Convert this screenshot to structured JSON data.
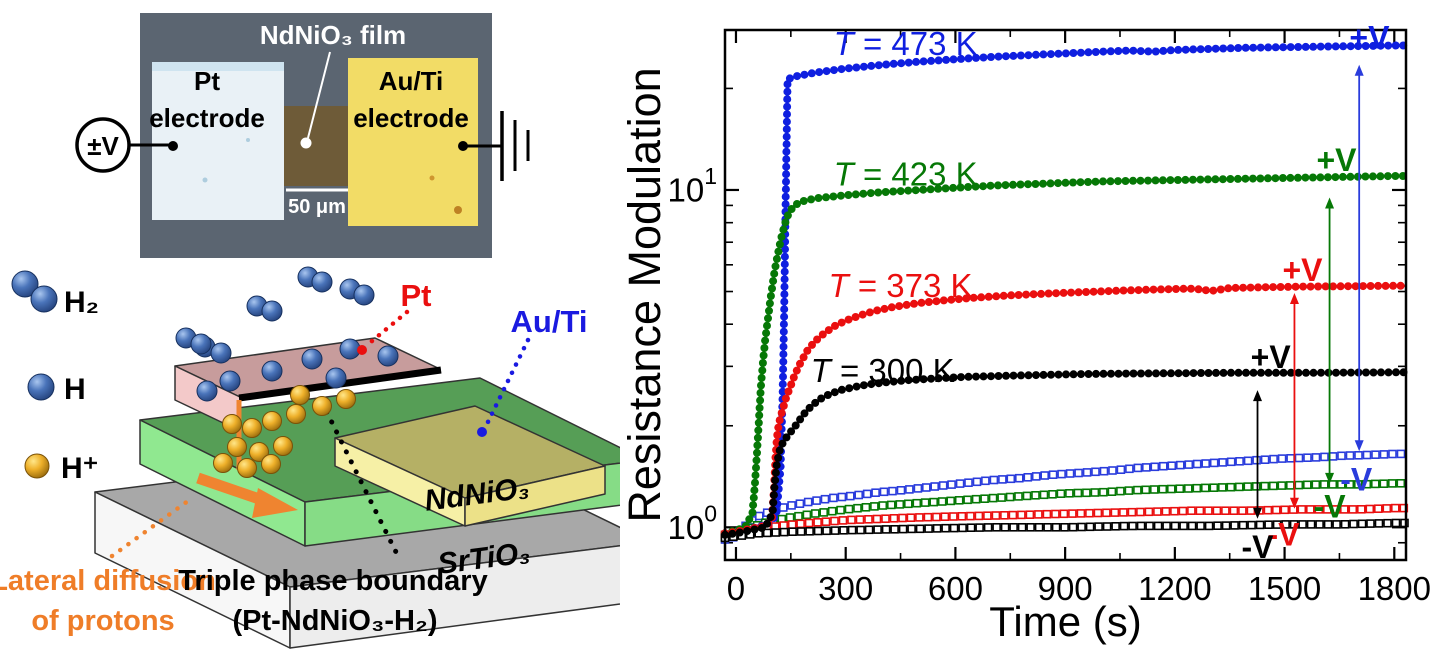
{
  "micrograph": {
    "film_label": "NdNiO₃ film",
    "pt_electrode": [
      "Pt",
      "electrode"
    ],
    "auti_electrode": [
      "Au/Ti",
      "electrode"
    ],
    "scale_bar_label": "50 μm",
    "voltage_source_label": "±V"
  },
  "legend": {
    "items": [
      {
        "icon": "h2-molecule",
        "label": "H₂"
      },
      {
        "icon": "h-atom",
        "label": "H"
      },
      {
        "icon": "proton",
        "label": "H⁺"
      }
    ]
  },
  "schematic": {
    "pt_label": "Pt",
    "auti_label": "Au/Ti",
    "film_layer_label": "NdNiO₃",
    "substrate_label": "SrTiO₃",
    "diffusion_label": [
      "Lateral diffusion",
      "of protons"
    ],
    "boundary_label": [
      "Triple phase boundary",
      "(Pt-NdNiO₃-H₂)"
    ]
  },
  "colors": {
    "series_473K": "#0f1fe0",
    "series_423K": "#067806",
    "series_373K": "#ea0f0f",
    "series_300K": "#000000",
    "pt_block": "#f3c9c9",
    "auti_block": "#f6f0a6",
    "nno_layer": "#90e890",
    "sto_substrate": "#f5f5f5",
    "proton": "#eeb02a",
    "hydrogen": "#4a74ba",
    "diffusion_accent": "#ef8430",
    "micrograph_bg": "#5b6571",
    "pt_pad": "#e9f1f6",
    "auti_pad": "#f2dc66",
    "nno_channel": "#6e5b38"
  },
  "chart_data": {
    "type": "line",
    "title": "",
    "xlabel": "Time (s)",
    "ylabel": "Resistance Modulation",
    "x_ticks": [
      0,
      300,
      600,
      900,
      1200,
      1500,
      1800
    ],
    "x_minor_ticks": [
      150,
      450,
      750,
      1050,
      1350,
      1650
    ],
    "xlim": [
      -30,
      1832
    ],
    "y_scale": "log",
    "y_tick_values": [
      1,
      10
    ],
    "y_tick_labels": [
      "10^0",
      "10^1"
    ],
    "y_minor_ticks": [
      0.9,
      2,
      3,
      4,
      5,
      6,
      7,
      8,
      9,
      20
    ],
    "ylim": [
      0.8,
      29.8
    ],
    "grid": false,
    "legend_position": "none",
    "series": [
      {
        "name": "T = 473 K (+V)",
        "temperature": "473 K",
        "voltage": "+V",
        "color": "#0f1fe0",
        "marker": "filled-circle",
        "points": [
          [
            -30,
            0.96
          ],
          [
            0,
            0.97
          ],
          [
            30,
            0.99
          ],
          [
            60,
            1.0
          ],
          [
            90,
            1.03
          ],
          [
            110,
            1.08
          ],
          [
            122,
            1.5
          ],
          [
            128,
            2.6
          ],
          [
            132,
            4.5
          ],
          [
            135,
            8
          ],
          [
            138,
            13
          ],
          [
            141,
            21.3
          ],
          [
            170,
            21.8
          ],
          [
            220,
            22.3
          ],
          [
            300,
            22.9
          ],
          [
            400,
            23.5
          ],
          [
            500,
            24.0
          ],
          [
            600,
            24.4
          ],
          [
            700,
            24.8
          ],
          [
            800,
            25.1
          ],
          [
            900,
            25.4
          ],
          [
            1000,
            25.7
          ],
          [
            1080,
            25.9
          ],
          [
            1140,
            25.7
          ],
          [
            1200,
            26.0
          ],
          [
            1300,
            26.2
          ],
          [
            1400,
            26.4
          ],
          [
            1500,
            26.5
          ],
          [
            1600,
            26.6
          ],
          [
            1700,
            26.7
          ],
          [
            1800,
            26.8
          ],
          [
            1830,
            26.8
          ]
        ]
      },
      {
        "name": "T = 423 K (+V)",
        "temperature": "423 K",
        "voltage": "+V",
        "color": "#067806",
        "marker": "filled-circle",
        "points": [
          [
            -30,
            0.96
          ],
          [
            0,
            0.98
          ],
          [
            25,
            1.0
          ],
          [
            45,
            1.1
          ],
          [
            52,
            1.35
          ],
          [
            58,
            1.7
          ],
          [
            63,
            2.1
          ],
          [
            68,
            2.6
          ],
          [
            74,
            3.1
          ],
          [
            80,
            3.6
          ],
          [
            88,
            4.2
          ],
          [
            96,
            4.9
          ],
          [
            105,
            5.7
          ],
          [
            115,
            6.5
          ],
          [
            125,
            7.3
          ],
          [
            135,
            8.0
          ],
          [
            145,
            8.6
          ],
          [
            160,
            9.0
          ],
          [
            180,
            9.25
          ],
          [
            220,
            9.45
          ],
          [
            300,
            9.65
          ],
          [
            400,
            9.85
          ],
          [
            500,
            10.0
          ],
          [
            600,
            10.15
          ],
          [
            700,
            10.3
          ],
          [
            800,
            10.4
          ],
          [
            900,
            10.5
          ],
          [
            1000,
            10.6
          ],
          [
            1100,
            10.65
          ],
          [
            1200,
            10.7
          ],
          [
            1300,
            10.75
          ],
          [
            1400,
            10.8
          ],
          [
            1500,
            10.85
          ],
          [
            1600,
            10.9
          ],
          [
            1700,
            10.95
          ],
          [
            1800,
            11.0
          ],
          [
            1830,
            11.0
          ]
        ]
      },
      {
        "name": "T = 373 K (+V)",
        "temperature": "373 K",
        "voltage": "+V",
        "color": "#ea0f0f",
        "marker": "filled-circle",
        "points": [
          [
            -30,
            0.96
          ],
          [
            0,
            0.97
          ],
          [
            40,
            0.99
          ],
          [
            80,
            1.01
          ],
          [
            98,
            1.05
          ],
          [
            104,
            1.3
          ],
          [
            108,
            1.6
          ],
          [
            112,
            1.85
          ],
          [
            118,
            2.05
          ],
          [
            126,
            2.2
          ],
          [
            136,
            2.4
          ],
          [
            148,
            2.6
          ],
          [
            162,
            2.85
          ],
          [
            178,
            3.1
          ],
          [
            196,
            3.35
          ],
          [
            215,
            3.55
          ],
          [
            240,
            3.75
          ],
          [
            270,
            3.95
          ],
          [
            300,
            4.1
          ],
          [
            340,
            4.25
          ],
          [
            380,
            4.38
          ],
          [
            430,
            4.5
          ],
          [
            500,
            4.62
          ],
          [
            580,
            4.72
          ],
          [
            660,
            4.8
          ],
          [
            750,
            4.87
          ],
          [
            850,
            4.93
          ],
          [
            950,
            4.98
          ],
          [
            1050,
            5.03
          ],
          [
            1150,
            5.07
          ],
          [
            1250,
            5.1
          ],
          [
            1300,
            5.02
          ],
          [
            1350,
            5.12
          ],
          [
            1450,
            5.15
          ],
          [
            1550,
            5.17
          ],
          [
            1650,
            5.18
          ],
          [
            1800,
            5.2
          ],
          [
            1830,
            5.2
          ]
        ]
      },
      {
        "name": "T = 300 K (+V)",
        "temperature": "300 K",
        "voltage": "+V",
        "color": "#000000",
        "marker": "filled-circle",
        "points": [
          [
            -30,
            0.95
          ],
          [
            0,
            0.96
          ],
          [
            40,
            0.98
          ],
          [
            80,
            1.0
          ],
          [
            100,
            1.1
          ],
          [
            106,
            1.35
          ],
          [
            112,
            1.55
          ],
          [
            120,
            1.7
          ],
          [
            130,
            1.8
          ],
          [
            142,
            1.87
          ],
          [
            155,
            1.95
          ],
          [
            170,
            2.05
          ],
          [
            188,
            2.18
          ],
          [
            208,
            2.3
          ],
          [
            230,
            2.4
          ],
          [
            255,
            2.48
          ],
          [
            285,
            2.55
          ],
          [
            320,
            2.6
          ],
          [
            360,
            2.65
          ],
          [
            410,
            2.69
          ],
          [
            470,
            2.73
          ],
          [
            540,
            2.76
          ],
          [
            620,
            2.79
          ],
          [
            720,
            2.81
          ],
          [
            840,
            2.83
          ],
          [
            980,
            2.85
          ],
          [
            1150,
            2.86
          ],
          [
            1350,
            2.87
          ],
          [
            1550,
            2.87
          ],
          [
            1800,
            2.88
          ],
          [
            1830,
            2.88
          ]
        ]
      },
      {
        "name": "T = 473 K (−V)",
        "temperature": "473 K",
        "voltage": "-V",
        "color": "#2a3cdc",
        "marker": "open-square",
        "points": [
          [
            -30,
            0.92
          ],
          [
            -10,
            0.93
          ],
          [
            10,
            0.97
          ],
          [
            30,
            1.02
          ],
          [
            55,
            1.07
          ],
          [
            80,
            1.1
          ],
          [
            110,
            1.13
          ],
          [
            150,
            1.16
          ],
          [
            200,
            1.19
          ],
          [
            260,
            1.22
          ],
          [
            320,
            1.24
          ],
          [
            390,
            1.27
          ],
          [
            460,
            1.29
          ],
          [
            540,
            1.32
          ],
          [
            620,
            1.35
          ],
          [
            700,
            1.38
          ],
          [
            780,
            1.4
          ],
          [
            860,
            1.43
          ],
          [
            940,
            1.45
          ],
          [
            1020,
            1.47
          ],
          [
            1100,
            1.5
          ],
          [
            1180,
            1.52
          ],
          [
            1260,
            1.54
          ],
          [
            1340,
            1.56
          ],
          [
            1420,
            1.58
          ],
          [
            1500,
            1.6
          ],
          [
            1580,
            1.61
          ],
          [
            1660,
            1.63
          ],
          [
            1740,
            1.64
          ],
          [
            1800,
            1.65
          ],
          [
            1830,
            1.65
          ]
        ]
      },
      {
        "name": "T = 423 K (−V)",
        "temperature": "423 K",
        "voltage": "-V",
        "color": "#067806",
        "marker": "open-square",
        "points": [
          [
            -30,
            0.94
          ],
          [
            0,
            0.96
          ],
          [
            40,
            1.0
          ],
          [
            90,
            1.04
          ],
          [
            150,
            1.07
          ],
          [
            220,
            1.1
          ],
          [
            300,
            1.13
          ],
          [
            400,
            1.16
          ],
          [
            500,
            1.18
          ],
          [
            600,
            1.2
          ],
          [
            700,
            1.22
          ],
          [
            800,
            1.24
          ],
          [
            900,
            1.26
          ],
          [
            1000,
            1.27
          ],
          [
            1100,
            1.29
          ],
          [
            1200,
            1.3
          ],
          [
            1300,
            1.31
          ],
          [
            1400,
            1.32
          ],
          [
            1500,
            1.33
          ],
          [
            1600,
            1.34
          ],
          [
            1700,
            1.34
          ],
          [
            1800,
            1.35
          ],
          [
            1830,
            1.35
          ]
        ]
      },
      {
        "name": "T = 373 K (−V)",
        "temperature": "373 K",
        "voltage": "-V",
        "color": "#ea0f0f",
        "marker": "open-square",
        "points": [
          [
            -30,
            0.95
          ],
          [
            0,
            0.96
          ],
          [
            60,
            0.99
          ],
          [
            120,
            1.01
          ],
          [
            200,
            1.03
          ],
          [
            300,
            1.05
          ],
          [
            400,
            1.06
          ],
          [
            500,
            1.07
          ],
          [
            650,
            1.08
          ],
          [
            800,
            1.09
          ],
          [
            950,
            1.1
          ],
          [
            1100,
            1.11
          ],
          [
            1250,
            1.12
          ],
          [
            1400,
            1.12
          ],
          [
            1550,
            1.13
          ],
          [
            1700,
            1.13
          ],
          [
            1800,
            1.14
          ],
          [
            1830,
            1.14
          ]
        ]
      },
      {
        "name": "T = 300 K (−V)",
        "temperature": "300 K",
        "voltage": "-V",
        "color": "#000000",
        "marker": "open-square",
        "points": [
          [
            -30,
            0.93
          ],
          [
            0,
            0.94
          ],
          [
            60,
            0.96
          ],
          [
            150,
            0.97
          ],
          [
            300,
            0.98
          ],
          [
            500,
            0.99
          ],
          [
            700,
            1.0
          ],
          [
            900,
            1.0
          ],
          [
            1100,
            1.01
          ],
          [
            1300,
            1.01
          ],
          [
            1500,
            1.02
          ],
          [
            1650,
            1.02
          ],
          [
            1800,
            1.03
          ],
          [
            1830,
            1.03
          ]
        ]
      }
    ],
    "curve_labels": [
      {
        "text": "T = 473 K",
        "color": "#0f1fe0",
        "t": 464,
        "v": 27.3
      },
      {
        "text": "T = 423 K",
        "color": "#067806",
        "t": 464,
        "v": 11.2
      },
      {
        "text": "T = 373 K",
        "color": "#ea0f0f",
        "t": 450,
        "v": 5.23
      },
      {
        "text": "T = 300 K",
        "color": "#000000",
        "t": 401,
        "v": 2.93
      }
    ],
    "voltage_labels": [
      {
        "text": "+V",
        "color": "#0f1fe0",
        "t": 1732,
        "v": 28.3
      },
      {
        "text": "+V",
        "color": "#067806",
        "t": 1642,
        "v": 12.28
      },
      {
        "text": "+V",
        "color": "#ea0f0f",
        "t": 1549,
        "v": 5.8
      },
      {
        "text": "+V",
        "color": "#000000",
        "t": 1462,
        "v": 3.2
      },
      {
        "text": "-V",
        "color": "#2a3cdc",
        "t": 1696,
        "v": 1.387
      },
      {
        "text": "-V",
        "color": "#067806",
        "t": 1623,
        "v": 1.154
      },
      {
        "text": "-V",
        "color": "#ea0f0f",
        "t": 1497,
        "v": 0.953
      },
      {
        "text": "-V",
        "color": "#000000",
        "t": 1426,
        "v": 0.873
      }
    ],
    "arrows": [
      {
        "color": "#000000",
        "t": 1426,
        "v_top": 2.55,
        "v_bottom": 1.06
      },
      {
        "color": "#ea0f0f",
        "t": 1527,
        "v_top": 4.95,
        "v_bottom": 1.135
      },
      {
        "color": "#067806",
        "t": 1623,
        "v_top": 9.5,
        "v_bottom": 1.345
      },
      {
        "color": "#2a3cdc",
        "t": 1704,
        "v_top": 23.5,
        "v_bottom": 1.68
      }
    ]
  }
}
